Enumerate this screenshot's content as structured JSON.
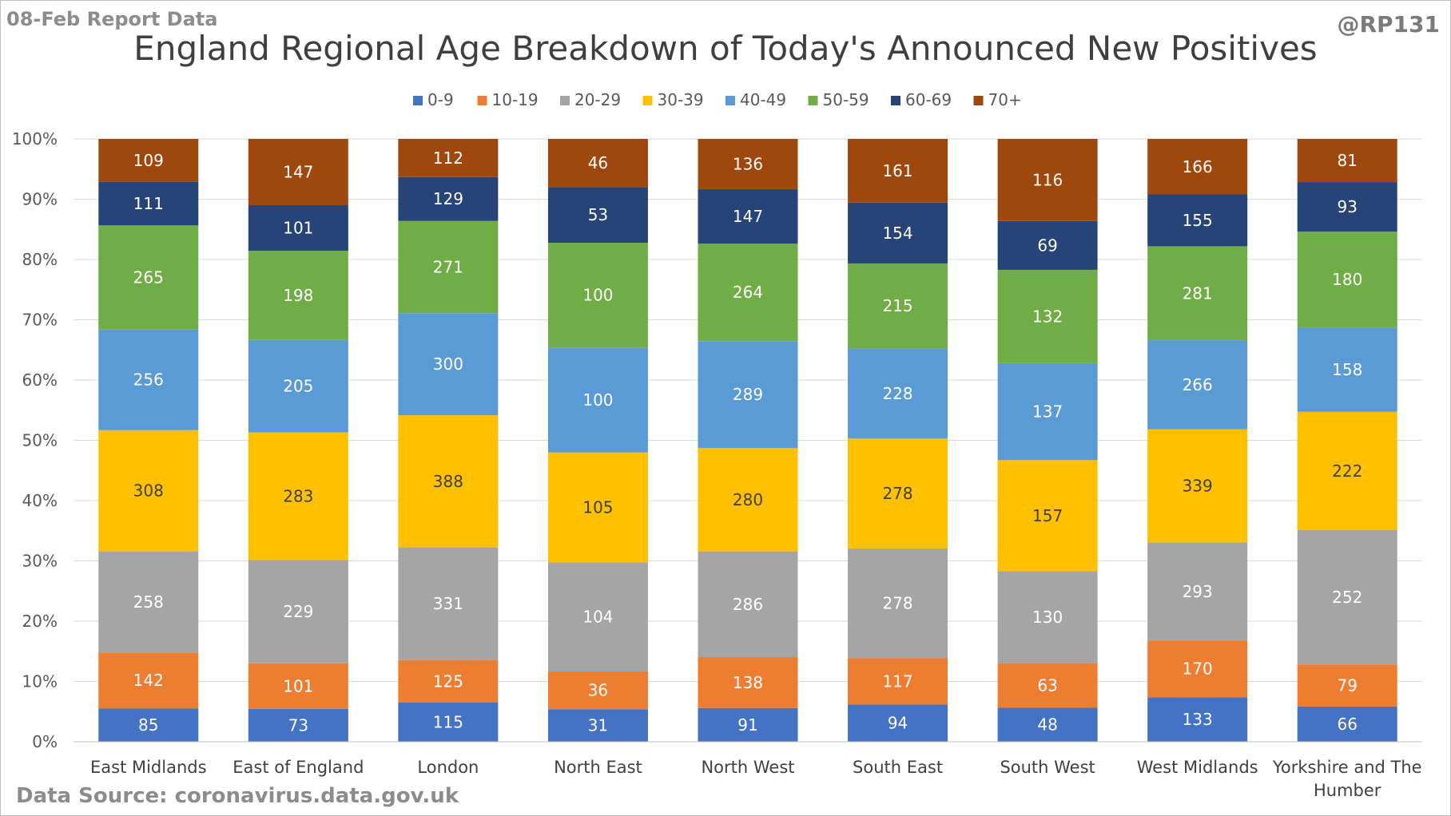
{
  "header": {
    "report_label": "08-Feb Report Data",
    "handle": "@RP131"
  },
  "footer": {
    "source": "Data Source: coronavirus.data.gov.uk"
  },
  "chart_data": {
    "type": "bar",
    "stacked": "percent",
    "title": "England Regional Age Breakdown of Today's Announced New Positives",
    "xlabel": "",
    "ylabel": "",
    "ylim": [
      0,
      100
    ],
    "y_ticks": [
      "0%",
      "10%",
      "20%",
      "30%",
      "40%",
      "50%",
      "60%",
      "70%",
      "80%",
      "90%",
      "100%"
    ],
    "legend_position": "top",
    "grid": true,
    "categories": [
      "East Midlands",
      "East of England",
      "London",
      "North East",
      "North West",
      "South East",
      "South West",
      "West Midlands",
      "Yorkshire and The Humber"
    ],
    "series": [
      {
        "name": "0-9",
        "color": "#4472c4",
        "values": [
          85,
          73,
          115,
          31,
          91,
          94,
          48,
          133,
          66
        ]
      },
      {
        "name": "10-19",
        "color": "#ed7d31",
        "values": [
          142,
          101,
          125,
          36,
          138,
          117,
          63,
          170,
          79
        ]
      },
      {
        "name": "20-29",
        "color": "#a5a5a5",
        "values": [
          258,
          229,
          331,
          104,
          286,
          278,
          130,
          293,
          252
        ]
      },
      {
        "name": "30-39",
        "color": "#ffc000",
        "values": [
          308,
          283,
          388,
          105,
          280,
          278,
          157,
          339,
          222
        ]
      },
      {
        "name": "40-49",
        "color": "#5b9bd5",
        "values": [
          256,
          205,
          300,
          100,
          289,
          228,
          137,
          266,
          158
        ]
      },
      {
        "name": "50-59",
        "color": "#70ad47",
        "values": [
          265,
          198,
          271,
          100,
          264,
          215,
          132,
          281,
          180
        ]
      },
      {
        "name": "60-69",
        "color": "#264478",
        "values": [
          111,
          101,
          129,
          53,
          147,
          154,
          69,
          155,
          93
        ]
      },
      {
        "name": "70+",
        "color": "#9e480e",
        "values": [
          109,
          147,
          112,
          46,
          136,
          161,
          116,
          166,
          81
        ]
      }
    ]
  }
}
